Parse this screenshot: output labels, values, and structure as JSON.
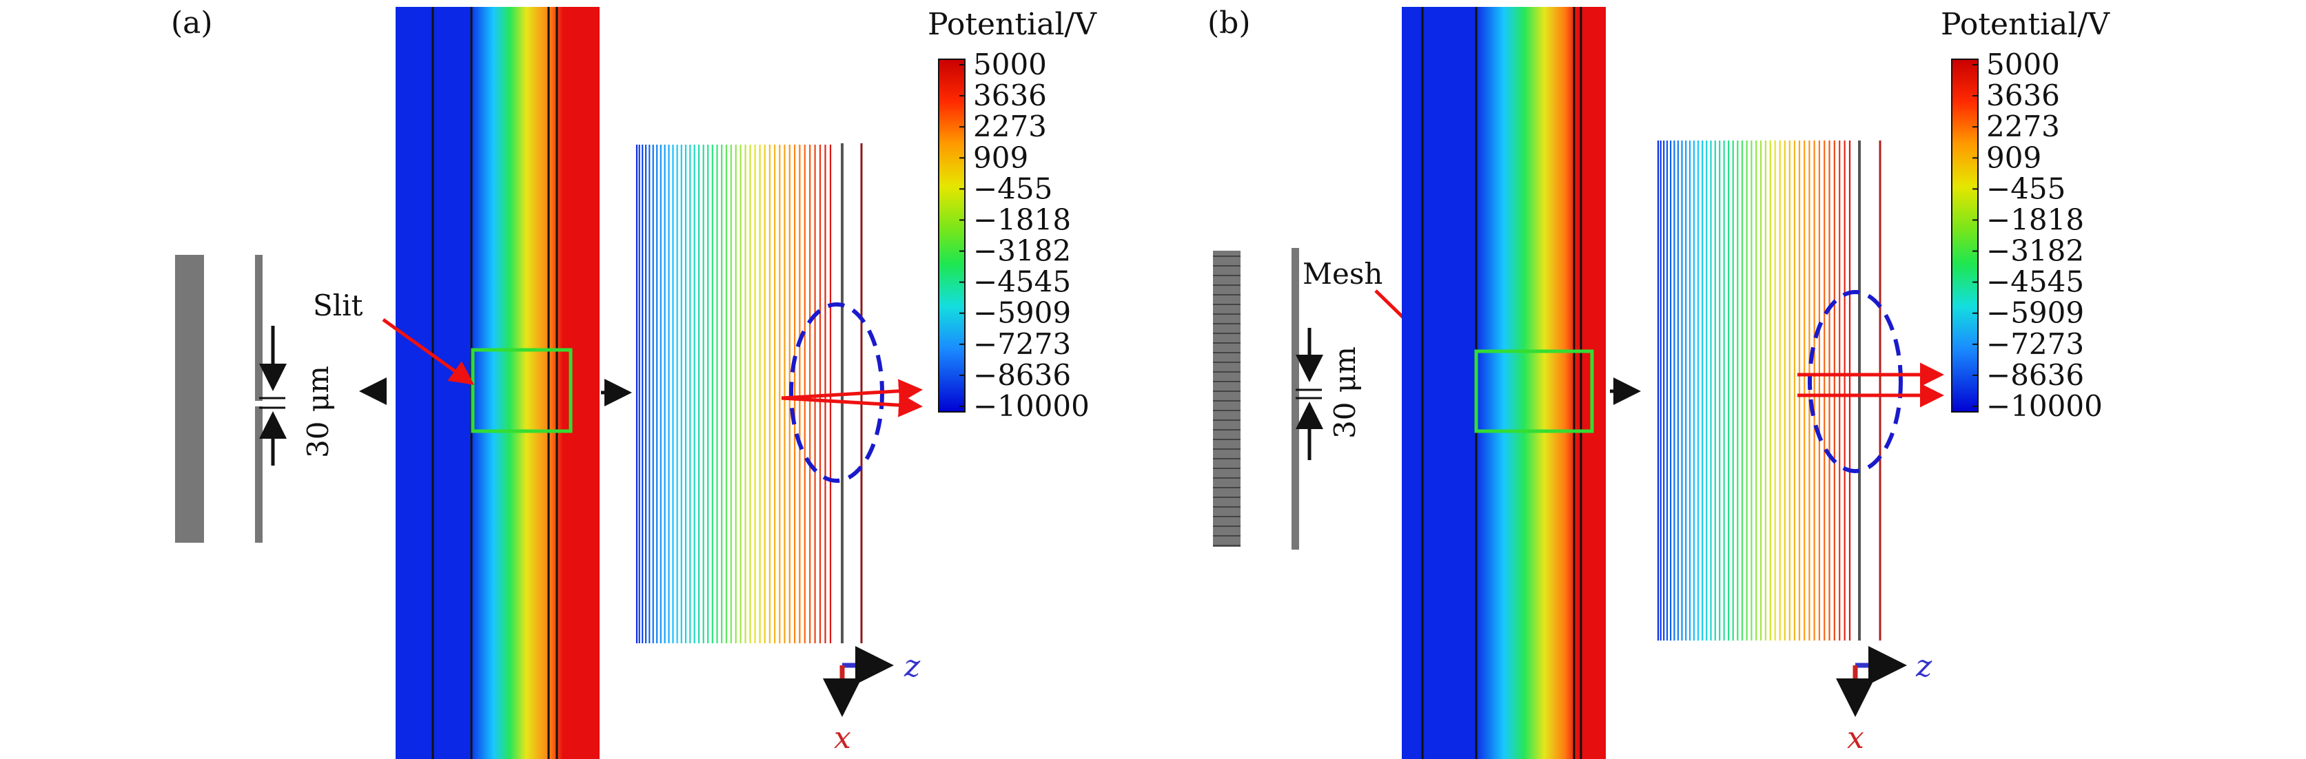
{
  "panels": [
    {
      "id": "a",
      "label": "(a)",
      "callout": "Slit",
      "dimension": "30 μm"
    },
    {
      "id": "b",
      "label": "(b)",
      "callout": "Mesh",
      "dimension": "30 μm"
    }
  ],
  "colorbar": {
    "title": "Potential/V",
    "ticks": [
      "5000",
      "3636",
      "2273",
      "909",
      "−455",
      "−1818",
      "−3182",
      "−4545",
      "−5909",
      "−7273",
      "−8636",
      "−10000"
    ]
  },
  "axes": {
    "z": "z",
    "x": "x"
  },
  "colors": {
    "highlight_box": "#33dd33",
    "arrow": "#ee1111",
    "ellipse": "#1a1acc",
    "axis_z": "#3333cc",
    "axis_x": "#cc2222",
    "electrode": "#777777"
  }
}
